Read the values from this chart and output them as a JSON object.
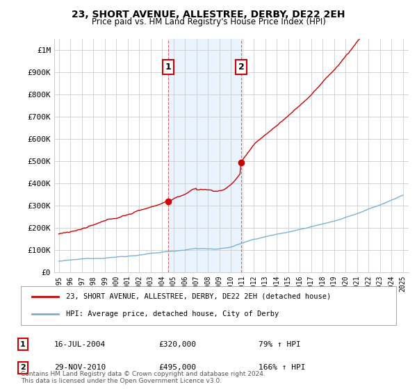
{
  "title": "23, SHORT AVENUE, ALLESTREE, DERBY, DE22 2EH",
  "subtitle": "Price paid vs. HM Land Registry's House Price Index (HPI)",
  "ylim": [
    0,
    1050000
  ],
  "yticks": [
    0,
    100000,
    200000,
    300000,
    400000,
    500000,
    600000,
    700000,
    800000,
    900000,
    1000000
  ],
  "ytick_labels": [
    "£0",
    "£100K",
    "£200K",
    "£300K",
    "£400K",
    "£500K",
    "£600K",
    "£700K",
    "£800K",
    "£900K",
    "£1M"
  ],
  "sale1_year": 2004.54,
  "sale1_price": 320000,
  "sale1_label": "1",
  "sale1_date": "16-JUL-2004",
  "sale1_price_str": "£320,000",
  "sale1_hpi": "79% ↑ HPI",
  "sale2_year": 2010.91,
  "sale2_price": 495000,
  "sale2_label": "2",
  "sale2_date": "29-NOV-2010",
  "sale2_price_str": "£495,000",
  "sale2_hpi": "166% ↑ HPI",
  "line_color_red": "#cc0000",
  "line_color_blue": "#7ab0d4",
  "vline_color": "#cc6666",
  "vline_fill": "#ddeeff",
  "grid_color": "#cccccc",
  "background_color": "#ffffff",
  "legend_label_red": "23, SHORT AVENUE, ALLESTREE, DERBY, DE22 2EH (detached house)",
  "legend_label_blue": "HPI: Average price, detached house, City of Derby",
  "footnote": "Contains HM Land Registry data © Crown copyright and database right 2024.\nThis data is licensed under the Open Government Licence v3.0."
}
